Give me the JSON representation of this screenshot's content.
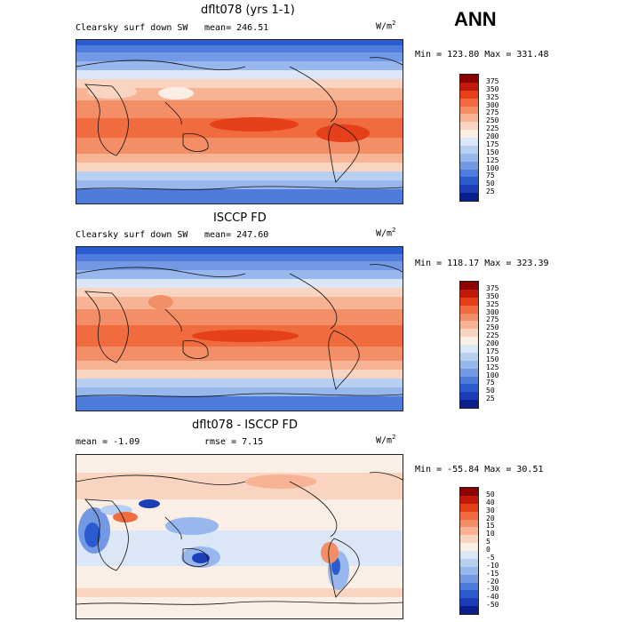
{
  "season": "ANN",
  "panels": [
    {
      "title": "dflt078 (yrs 1-1)",
      "left_label": "Clearsky surf down SW",
      "stat_label": "mean= 246.51",
      "units_base": "W/m",
      "units_exp": "2",
      "minmax": "Min = 123.80 Max = 331.48",
      "colorbar": {
        "labels": [
          "375",
          "350",
          "325",
          "300",
          "275",
          "250",
          "225",
          "200",
          "175",
          "150",
          "125",
          "100",
          "75",
          "50",
          "25"
        ],
        "colors": [
          "#8b0000",
          "#c21a0a",
          "#e5401a",
          "#f06b3e",
          "#f48e66",
          "#f7b393",
          "#f9d5c1",
          "#fbeee4",
          "#dbe7f7",
          "#b9cff2",
          "#98b7ec",
          "#7399e4",
          "#4f7cdc",
          "#2b5ccf",
          "#1a3fb8",
          "#0b1f8a"
        ]
      }
    },
    {
      "title": "ISCCP FD",
      "left_label": "Clearsky surf down SW",
      "stat_label": "mean= 247.60",
      "units_base": "W/m",
      "units_exp": "2",
      "minmax": "Min = 118.17 Max = 323.39",
      "colorbar": {
        "labels": [
          "375",
          "350",
          "325",
          "300",
          "275",
          "250",
          "225",
          "200",
          "175",
          "150",
          "125",
          "100",
          "75",
          "50",
          "25"
        ],
        "colors": [
          "#8b0000",
          "#c21a0a",
          "#e5401a",
          "#f06b3e",
          "#f48e66",
          "#f7b393",
          "#f9d5c1",
          "#fbeee4",
          "#dbe7f7",
          "#b9cff2",
          "#98b7ec",
          "#7399e4",
          "#4f7cdc",
          "#2b5ccf",
          "#1a3fb8",
          "#0b1f8a"
        ]
      }
    },
    {
      "title": "dflt078 - ISCCP FD",
      "left_label": "mean =  -1.09",
      "stat_label": "rmse =   7.15",
      "units_base": "W/m",
      "units_exp": "2",
      "minmax": "Min = -55.84 Max =  30.51",
      "colorbar": {
        "labels": [
          "50",
          "40",
          "30",
          "20",
          "15",
          "10",
          "5",
          "0",
          "-5",
          "-10",
          "-15",
          "-20",
          "-30",
          "-40",
          "-50"
        ],
        "colors": [
          "#8b0000",
          "#c21a0a",
          "#e5401a",
          "#f06b3e",
          "#f48e66",
          "#f7b393",
          "#f9d5c1",
          "#fbeee4",
          "#dbe7f7",
          "#b9cff2",
          "#98b7ec",
          "#7399e4",
          "#4f7cdc",
          "#2b5ccf",
          "#1a3fb8",
          "#0b1f8a"
        ]
      }
    }
  ]
}
